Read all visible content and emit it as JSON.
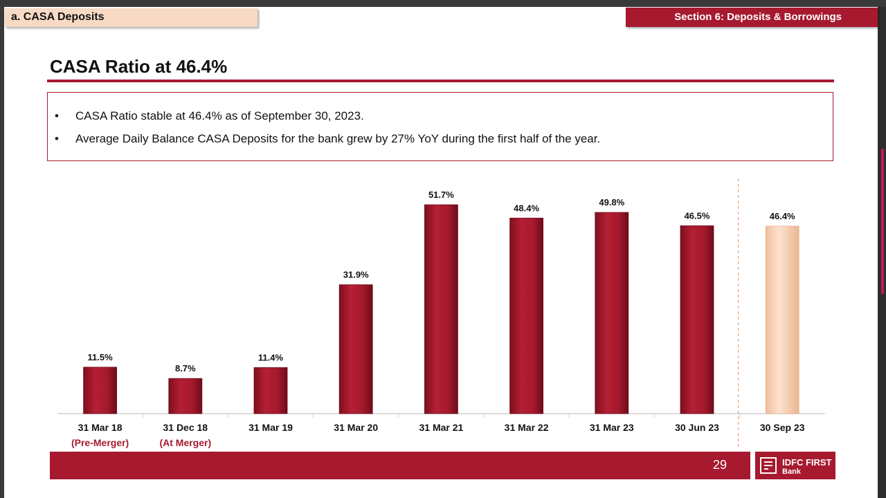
{
  "header": {
    "left_tag": "a. CASA Deposits",
    "right_tag": "Section 6:  Deposits & Borrowings"
  },
  "title": "CASA Ratio at 46.4%",
  "bullets": [
    "CASA Ratio stable at 46.4% as of September 30, 2023.",
    "Average Daily Balance CASA Deposits for the bank grew by 27% YoY during the first half of the year."
  ],
  "bullet_symbol": "•",
  "footer": {
    "page_number": "29",
    "logo_line1": "IDFC FIRST",
    "logo_line2": "Bank"
  },
  "colors": {
    "bar": "#a6192e",
    "bar_highlight": "#f9d3b8",
    "accent": "#a6192e",
    "sublabel": "#a6192e"
  },
  "chart_data": {
    "type": "bar",
    "categories": [
      "31 Mar 18",
      "31 Dec 18",
      "31 Mar 19",
      "31 Mar 20",
      "31 Mar 21",
      "31 Mar 22",
      "31 Mar 23",
      "30 Jun 23",
      "30 Sep 23"
    ],
    "sublabels": [
      "(Pre-Merger)",
      "(At Merger)",
      "",
      "",
      "",
      "",
      "",
      "",
      ""
    ],
    "values": [
      11.5,
      8.7,
      11.4,
      31.9,
      51.7,
      48.4,
      49.8,
      46.5,
      46.4
    ],
    "data_labels": [
      "11.5%",
      "8.7%",
      "11.4%",
      "31.9%",
      "51.7%",
      "48.4%",
      "49.8%",
      "46.5%",
      "46.4%"
    ],
    "highlight_index": 8,
    "ylim": [
      0,
      51.7
    ],
    "title": "",
    "xlabel": "",
    "ylabel": ""
  }
}
